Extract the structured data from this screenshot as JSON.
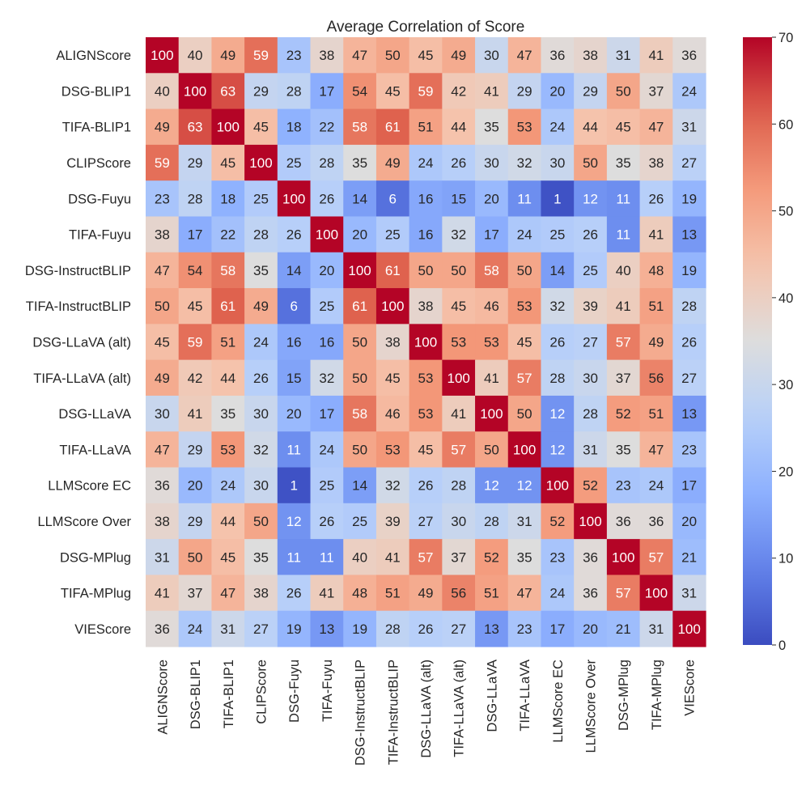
{
  "chart_data": {
    "type": "heatmap",
    "title": "Average Correlation of Score",
    "labels": [
      "ALIGNScore",
      "DSG-BLIP1",
      "TIFA-BLIP1",
      "CLIPScore",
      "DSG-Fuyu",
      "TIFA-Fuyu",
      "DSG-InstructBLIP",
      "TIFA-InstructBLIP",
      "DSG-LLaVA (alt)",
      "TIFA-LLaVA (alt)",
      "DSG-LLaVA",
      "TIFA-LLaVA",
      "LLMScore EC",
      "LLMScore Over",
      "DSG-MPlug",
      "TIFA-MPlug",
      "VIEScore"
    ],
    "values": [
      [
        100,
        40,
        49,
        59,
        23,
        38,
        47,
        50,
        45,
        49,
        30,
        47,
        36,
        38,
        31,
        41,
        36
      ],
      [
        40,
        100,
        63,
        29,
        28,
        17,
        54,
        45,
        59,
        42,
        41,
        29,
        20,
        29,
        50,
        37,
        24
      ],
      [
        49,
        63,
        100,
        45,
        18,
        22,
        58,
        61,
        51,
        44,
        35,
        53,
        24,
        44,
        45,
        47,
        31
      ],
      [
        59,
        29,
        45,
        100,
        25,
        28,
        35,
        49,
        24,
        26,
        30,
        32,
        30,
        50,
        35,
        38,
        27
      ],
      [
        23,
        28,
        18,
        25,
        100,
        26,
        14,
        6,
        16,
        15,
        20,
        11,
        1,
        12,
        11,
        26,
        19
      ],
      [
        38,
        17,
        22,
        28,
        26,
        100,
        20,
        25,
        16,
        32,
        17,
        24,
        25,
        26,
        11,
        41,
        13
      ],
      [
        47,
        54,
        58,
        35,
        14,
        20,
        100,
        61,
        50,
        50,
        58,
        50,
        14,
        25,
        40,
        48,
        19
      ],
      [
        50,
        45,
        61,
        49,
        6,
        25,
        61,
        100,
        38,
        45,
        46,
        53,
        32,
        39,
        41,
        51,
        28
      ],
      [
        45,
        59,
        51,
        24,
        16,
        16,
        50,
        38,
        100,
        53,
        53,
        45,
        26,
        27,
        57,
        49,
        26
      ],
      [
        49,
        42,
        44,
        26,
        15,
        32,
        50,
        45,
        53,
        100,
        41,
        57,
        28,
        30,
        37,
        56,
        27
      ],
      [
        30,
        41,
        35,
        30,
        20,
        17,
        58,
        46,
        53,
        41,
        100,
        50,
        12,
        28,
        52,
        51,
        13
      ],
      [
        47,
        29,
        53,
        32,
        11,
        24,
        50,
        53,
        45,
        57,
        50,
        100,
        12,
        31,
        35,
        47,
        23
      ],
      [
        36,
        20,
        24,
        30,
        1,
        25,
        14,
        32,
        26,
        28,
        12,
        12,
        100,
        52,
        23,
        24,
        17
      ],
      [
        38,
        29,
        44,
        50,
        12,
        26,
        25,
        39,
        27,
        30,
        28,
        31,
        52,
        100,
        36,
        36,
        20
      ],
      [
        31,
        50,
        45,
        35,
        11,
        11,
        40,
        41,
        57,
        37,
        52,
        35,
        23,
        36,
        100,
        57,
        21
      ],
      [
        41,
        37,
        47,
        38,
        26,
        41,
        48,
        51,
        49,
        56,
        51,
        47,
        24,
        36,
        57,
        100,
        31
      ],
      [
        36,
        24,
        31,
        27,
        19,
        13,
        19,
        28,
        26,
        27,
        13,
        23,
        17,
        20,
        21,
        31,
        100
      ]
    ],
    "colorbar": {
      "colormap": "coolwarm",
      "vmin": 0,
      "vmax": 70,
      "ticks": [
        0,
        10,
        20,
        30,
        40,
        50,
        60,
        70
      ]
    },
    "grid": false
  }
}
